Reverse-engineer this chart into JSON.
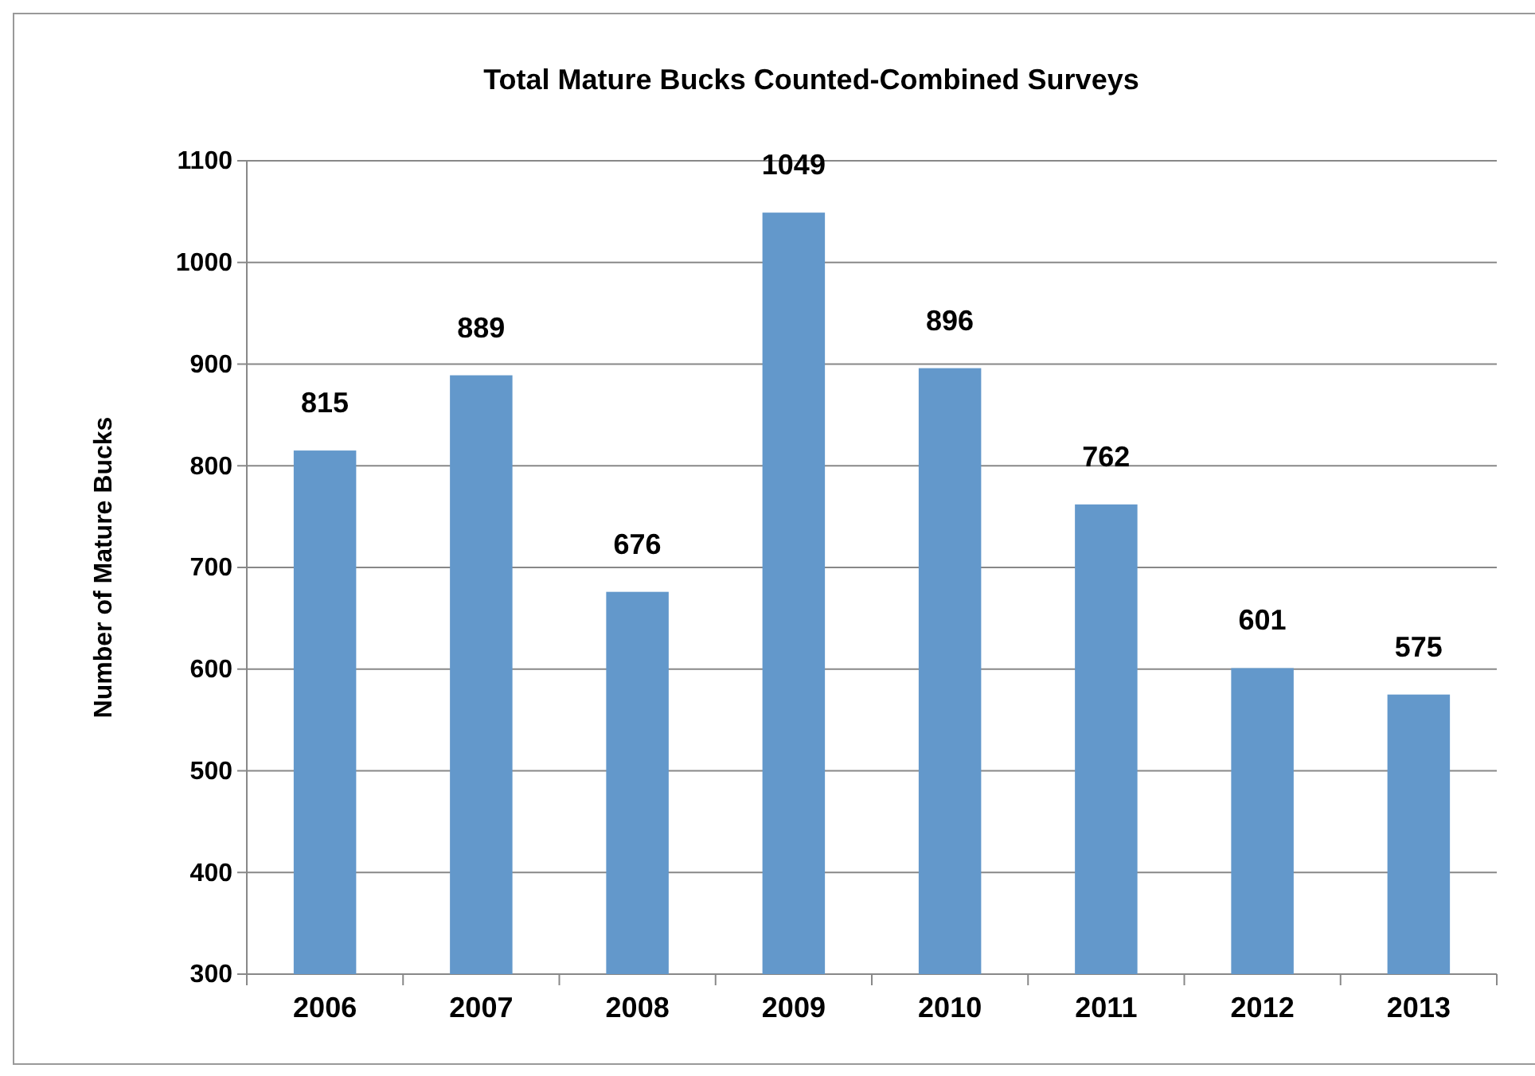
{
  "chart_data": {
    "type": "bar",
    "title": "Total Mature Bucks Counted-Combined Surveys",
    "ylabel": "Number of Mature Bucks",
    "categories": [
      "2006",
      "2007",
      "2008",
      "2009",
      "2010",
      "2011",
      "2012",
      "2013"
    ],
    "values": [
      815,
      889,
      676,
      1049,
      896,
      762,
      601,
      575
    ],
    "color": "#6398cb",
    "ylim": [
      300,
      1100
    ],
    "yticks": [
      300,
      400,
      500,
      600,
      700,
      800,
      900,
      1000,
      1100
    ],
    "grid": "y",
    "data_labels": true
  }
}
